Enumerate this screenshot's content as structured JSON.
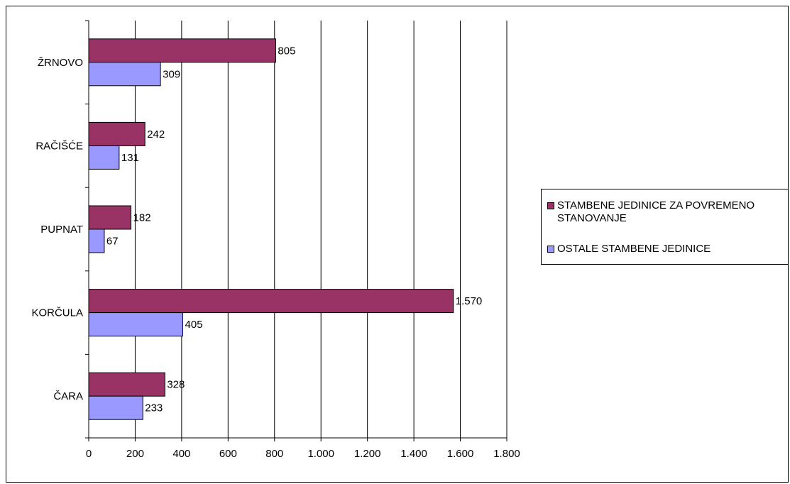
{
  "chart_data": {
    "type": "bar",
    "orientation": "horizontal",
    "categories": [
      "ŽRNOVO",
      "RAČIŠĆE",
      "PUPNAT",
      "KORČULA",
      "ČARA"
    ],
    "series": [
      {
        "name": "STAMBENE JEDINICE ZA POVREMENO STANOVANJE",
        "color": "#993366",
        "values": [
          805,
          242,
          182,
          1570,
          328
        ],
        "labels": [
          "805",
          "242",
          "182",
          "1.570",
          "328"
        ]
      },
      {
        "name": "OSTALE STAMBENE JEDINICE",
        "color": "#9999FF",
        "values": [
          309,
          131,
          67,
          405,
          233
        ],
        "labels": [
          "309",
          "131",
          "67",
          "405",
          "233"
        ]
      }
    ],
    "xlim": [
      0,
      1800
    ],
    "xticks": [
      0,
      200,
      400,
      600,
      800,
      1000,
      1200,
      1400,
      1600,
      1800
    ],
    "xtick_labels": [
      "0",
      "200",
      "400",
      "600",
      "800",
      "1.000",
      "1.200",
      "1.400",
      "1.600",
      "1.800"
    ],
    "grid": "vertical",
    "legend_position": "right",
    "legend_lines": [
      [
        "STAMBENE JEDINICE ZA POVREMENO",
        "STANOVANJE"
      ],
      [
        "OSTALE STAMBENE JEDINICE"
      ]
    ]
  }
}
